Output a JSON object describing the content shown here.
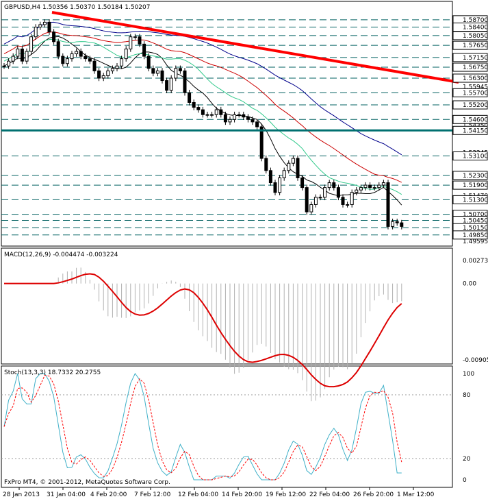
{
  "colors": {
    "candles": "#000000",
    "dashed_levels": "#006060",
    "strong_level": "#007070",
    "trendline": "#ff0000",
    "ma_blue": "#00008b",
    "ma_red": "#cc0000",
    "ma_green": "#2fc98a",
    "ma_black": "#000000",
    "macd_hist": "#b0b0b0",
    "macd_signal": "#dd0000",
    "stoch_main": "#3fb0c8",
    "stoch_signal": "#ff0000",
    "price_box_bg": "#ffffff"
  },
  "main": {
    "header": "GBPUSD,H4  1.50356 1.50370 1.50184 1.50207",
    "price_labels": [
      "1.58700",
      "1.58400",
      "1.58050",
      "1.57650",
      "1.57150",
      "1.56750",
      "1.56300",
      "1.55945",
      "1.55700",
      "1.55200",
      "1.54600",
      "1.54350",
      "1.54150",
      "1.53245",
      "1.53100",
      "1.52300",
      "1.51900",
      "1.51470",
      "1.51300",
      "1.50700",
      "1.50450",
      "1.50150",
      "1.49850",
      "1.49595"
    ],
    "boxed_levels": [
      1.587,
      1.584,
      1.5805,
      1.5765,
      1.5715,
      1.5675,
      1.563,
      1.557,
      1.552,
      1.546,
      1.5415,
      1.531,
      1.523,
      1.519,
      1.513,
      1.507,
      1.5045,
      1.5015,
      1.4985
    ],
    "strong_level": 1.5415
  },
  "macd": {
    "header": "MACD(12,26,9) -0.004474 -0.003224",
    "scale_labels": [
      "0.002736",
      "0.00",
      "-0.00905"
    ]
  },
  "stoch": {
    "header": "Stoch(13,3,3) 18.7332 20.2755",
    "scale_labels": [
      "100",
      "80",
      "20",
      "0"
    ]
  },
  "time_labels": [
    "28 Jan 2013",
    "31 Jan 04:00",
    "4 Feb 20:00",
    "7 Feb 12:00",
    "12 Feb 04:00",
    "14 Feb 20:00",
    "19 Feb 12:00",
    "22 Feb 04:00",
    "26 Feb 20:00",
    "1 Mar 12:00"
  ],
  "copyright": "FxPro MT4, © 2001-2012, MetaQuotes Software Corp.",
  "chart_data": [
    {
      "type": "line",
      "title": "GBPUSD,H4",
      "ylim": [
        1.4945,
        1.5895
      ],
      "approx_close": [
        1.568,
        1.57,
        1.572,
        1.575,
        1.57,
        1.574,
        1.58,
        1.584,
        1.585,
        1.586,
        1.582,
        1.578,
        1.572,
        1.569,
        1.571,
        1.573,
        1.574,
        1.572,
        1.571,
        1.57,
        1.566,
        1.563,
        1.564,
        1.566,
        1.567,
        1.568,
        1.571,
        1.575,
        1.58,
        1.58,
        1.577,
        1.572,
        1.567,
        1.565,
        1.566,
        1.562,
        1.558,
        1.563,
        1.567,
        1.566,
        1.557,
        1.553,
        1.551,
        1.55,
        1.548,
        1.548,
        1.548,
        1.55,
        1.548,
        1.545,
        1.546,
        1.548,
        1.548,
        1.547,
        1.546,
        1.545,
        1.543,
        1.53,
        1.525,
        1.52,
        1.516,
        1.522,
        1.525,
        1.528,
        1.53,
        1.522,
        1.518,
        1.508,
        1.511,
        1.514,
        1.514,
        1.518,
        1.52,
        1.518,
        1.514,
        1.511,
        1.511,
        1.516,
        1.517,
        1.518,
        1.519,
        1.518,
        1.518,
        1.519,
        1.52,
        1.502,
        1.504,
        1.5035,
        1.502
      ]
    },
    {
      "type": "bar",
      "title": "MACD(12,26,9)",
      "ylim": [
        -0.00905,
        0.002736
      ],
      "last_values": {
        "macd": -0.004474,
        "signal": -0.003224
      }
    },
    {
      "type": "line",
      "title": "Stoch(13,3,3)",
      "ylim": [
        0,
        100
      ],
      "last_values": {
        "main": 18.7332,
        "signal": 20.2755
      }
    }
  ]
}
